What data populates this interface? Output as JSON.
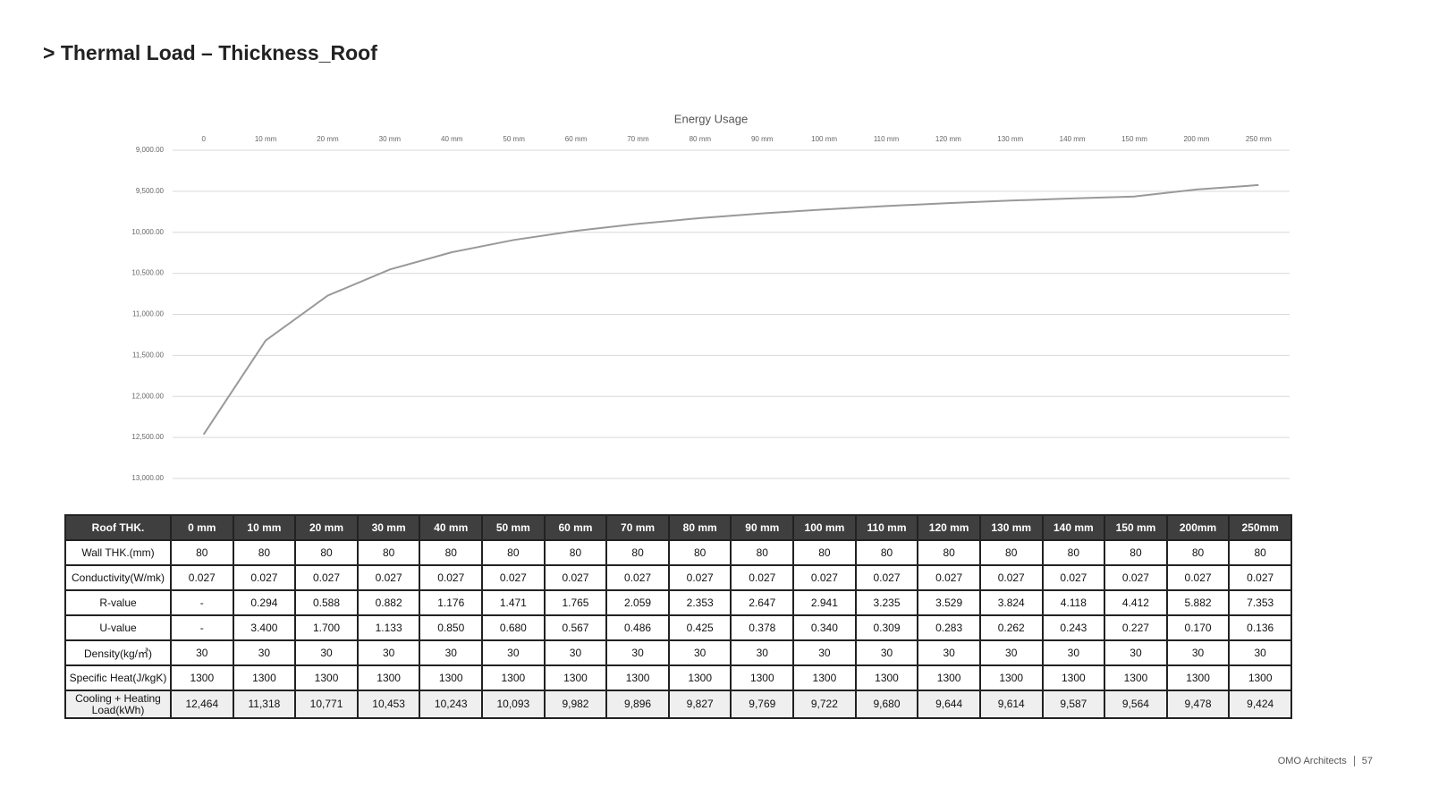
{
  "title": "> Thermal Load – Thickness_Roof",
  "chart_data": {
    "type": "line",
    "title": "Energy Usage",
    "categories": [
      "0",
      "10 mm",
      "20 mm",
      "30 mm",
      "40 mm",
      "50 mm",
      "60 mm",
      "70 mm",
      "80 mm",
      "90 mm",
      "100 mm",
      "110 mm",
      "120 mm",
      "130 mm",
      "140 mm",
      "150 mm",
      "200 mm",
      "250 mm"
    ],
    "values": [
      12464,
      11318,
      10771,
      10453,
      10243,
      10093,
      9982,
      9896,
      9827,
      9769,
      9722,
      9680,
      9644,
      9614,
      9587,
      9564,
      9478,
      9424
    ],
    "color": "#999999",
    "ylim": [
      9000,
      13000
    ],
    "y_reversed": true,
    "yticks": [
      {
        "value": 9000,
        "label": "9,000.00"
      },
      {
        "value": 9500,
        "label": "9,500.00"
      },
      {
        "value": 10000,
        "label": "10,000.00"
      },
      {
        "value": 10500,
        "label": "10,500.00"
      },
      {
        "value": 11000,
        "label": "11,000.00"
      },
      {
        "value": 11500,
        "label": "11,500.00"
      },
      {
        "value": 12000,
        "label": "12,000.00"
      },
      {
        "value": 12500,
        "label": "12,500.00"
      },
      {
        "value": 13000,
        "label": "13,000.00"
      }
    ],
    "grid": true
  },
  "table": {
    "header": [
      "Roof THK.",
      "0 mm",
      "10 mm",
      "20 mm",
      "30 mm",
      "40 mm",
      "50 mm",
      "60 mm",
      "70 mm",
      "80 mm",
      "90 mm",
      "100 mm",
      "110 mm",
      "120 mm",
      "130 mm",
      "140 mm",
      "150 mm",
      "200mm",
      "250mm"
    ],
    "rows": [
      [
        "Wall THK.(mm)",
        "80",
        "80",
        "80",
        "80",
        "80",
        "80",
        "80",
        "80",
        "80",
        "80",
        "80",
        "80",
        "80",
        "80",
        "80",
        "80",
        "80",
        "80"
      ],
      [
        "Conductivity(W/mk)",
        "0.027",
        "0.027",
        "0.027",
        "0.027",
        "0.027",
        "0.027",
        "0.027",
        "0.027",
        "0.027",
        "0.027",
        "0.027",
        "0.027",
        "0.027",
        "0.027",
        "0.027",
        "0.027",
        "0.027",
        "0.027"
      ],
      [
        "R-value",
        "-",
        "0.294",
        "0.588",
        "0.882",
        "1.176",
        "1.471",
        "1.765",
        "2.059",
        "2.353",
        "2.647",
        "2.941",
        "3.235",
        "3.529",
        "3.824",
        "4.118",
        "4.412",
        "5.882",
        "7.353"
      ],
      [
        "U-value",
        "-",
        "3.400",
        "1.700",
        "1.133",
        "0.850",
        "0.680",
        "0.567",
        "0.486",
        "0.425",
        "0.378",
        "0.340",
        "0.309",
        "0.283",
        "0.262",
        "0.243",
        "0.227",
        "0.170",
        "0.136"
      ],
      [
        "Density(kg/㎥)",
        "30",
        "30",
        "30",
        "30",
        "30",
        "30",
        "30",
        "30",
        "30",
        "30",
        "30",
        "30",
        "30",
        "30",
        "30",
        "30",
        "30",
        "30"
      ],
      [
        "Specific Heat(J/kgK)",
        "1300",
        "1300",
        "1300",
        "1300",
        "1300",
        "1300",
        "1300",
        "1300",
        "1300",
        "1300",
        "1300",
        "1300",
        "1300",
        "1300",
        "1300",
        "1300",
        "1300",
        "1300"
      ],
      [
        "Cooling + Heating Load(kWh)",
        "12,464",
        "11,318",
        "10,771",
        "10,453",
        "10,243",
        "10,093",
        "9,982",
        "9,896",
        "9,827",
        "9,769",
        "9,722",
        "9,680",
        "9,644",
        "9,614",
        "9,587",
        "9,564",
        "9,478",
        "9,424"
      ]
    ]
  },
  "footer": {
    "company": "OMO Architects",
    "page": "57"
  }
}
